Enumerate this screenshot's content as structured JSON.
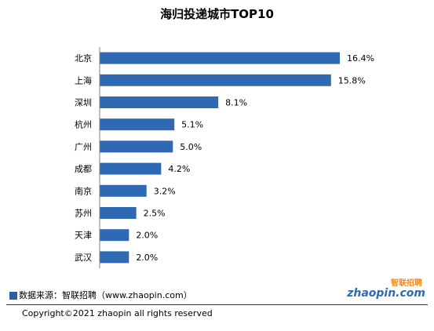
{
  "chart_data": {
    "type": "bar",
    "orientation": "horizontal",
    "title": "海归投递城市TOP10",
    "categories": [
      "北京",
      "上海",
      "深圳",
      "杭州",
      "广州",
      "成都",
      "南京",
      "苏州",
      "天津",
      "武汉"
    ],
    "values": [
      16.4,
      15.8,
      8.1,
      5.1,
      5.0,
      4.2,
      3.2,
      2.5,
      2.0,
      2.0
    ],
    "value_labels": [
      "16.4%",
      "15.8%",
      "8.1%",
      "5.1%",
      "5.0%",
      "4.2%",
      "3.2%",
      "2.5%",
      "2.0%",
      "2.0%"
    ],
    "xlim": [
      0,
      16.4
    ],
    "grid": false,
    "legend": "none",
    "bar_color": "#2f69b3"
  },
  "footer": {
    "source": "数据来源：智联招聘（www.zhaopin.com）",
    "logo_cn": "智联招聘",
    "logo_en": "zhaopin.com",
    "copyright": "Copyright©2021 zhaopin all rights reserved"
  },
  "colors": {
    "source_square": "#2f5f9f",
    "logo_orange": "#f08a1c",
    "logo_blue": "#2f6ab2"
  }
}
